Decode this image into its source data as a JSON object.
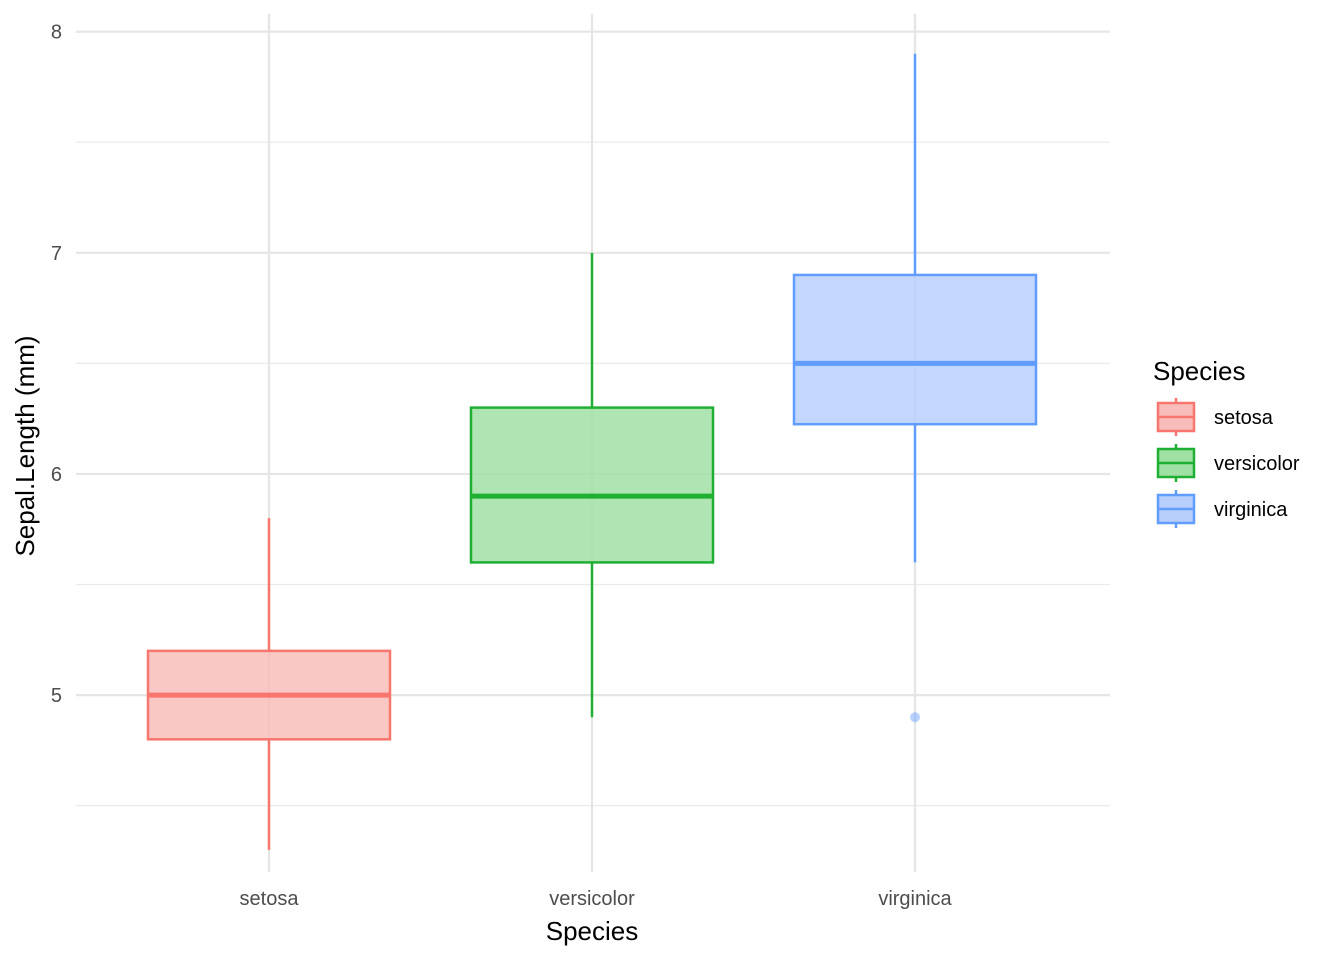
{
  "chart_data": {
    "type": "boxplot",
    "xlabel": "Species",
    "ylabel": "Sepal.Length (mm)",
    "categories": [
      "setosa",
      "versicolor",
      "virginica"
    ],
    "ylim": [
      4.2,
      8.08
    ],
    "y_ticks": [
      5,
      6,
      7,
      8
    ],
    "y_tick_labels": [
      "5",
      "6",
      "7",
      "8"
    ],
    "y_minor_gridlines": [
      4.5,
      5.5,
      6.5,
      7.5
    ],
    "grid": true,
    "series": [
      {
        "name": "setosa",
        "min": 4.3,
        "q1": 4.8,
        "median": 5.0,
        "q3": 5.2,
        "max": 5.8,
        "outliers": [],
        "color": "#F8766D",
        "fill": "#F8BDBA"
      },
      {
        "name": "versicolor",
        "min": 4.9,
        "q1": 5.6,
        "median": 5.9,
        "q3": 6.3,
        "max": 7.0,
        "outliers": [],
        "color": "#1FAF33",
        "fill": "#A1E0A4"
      },
      {
        "name": "virginica",
        "min": 5.6,
        "q1": 6.225,
        "median": 6.5,
        "q3": 6.9,
        "max": 7.9,
        "outliers": [
          4.9
        ],
        "color": "#619CFF",
        "fill": "#B8CFFC"
      }
    ],
    "legend": {
      "title": "Species",
      "position": "right",
      "items": [
        "setosa",
        "versicolor",
        "virginica"
      ]
    }
  }
}
